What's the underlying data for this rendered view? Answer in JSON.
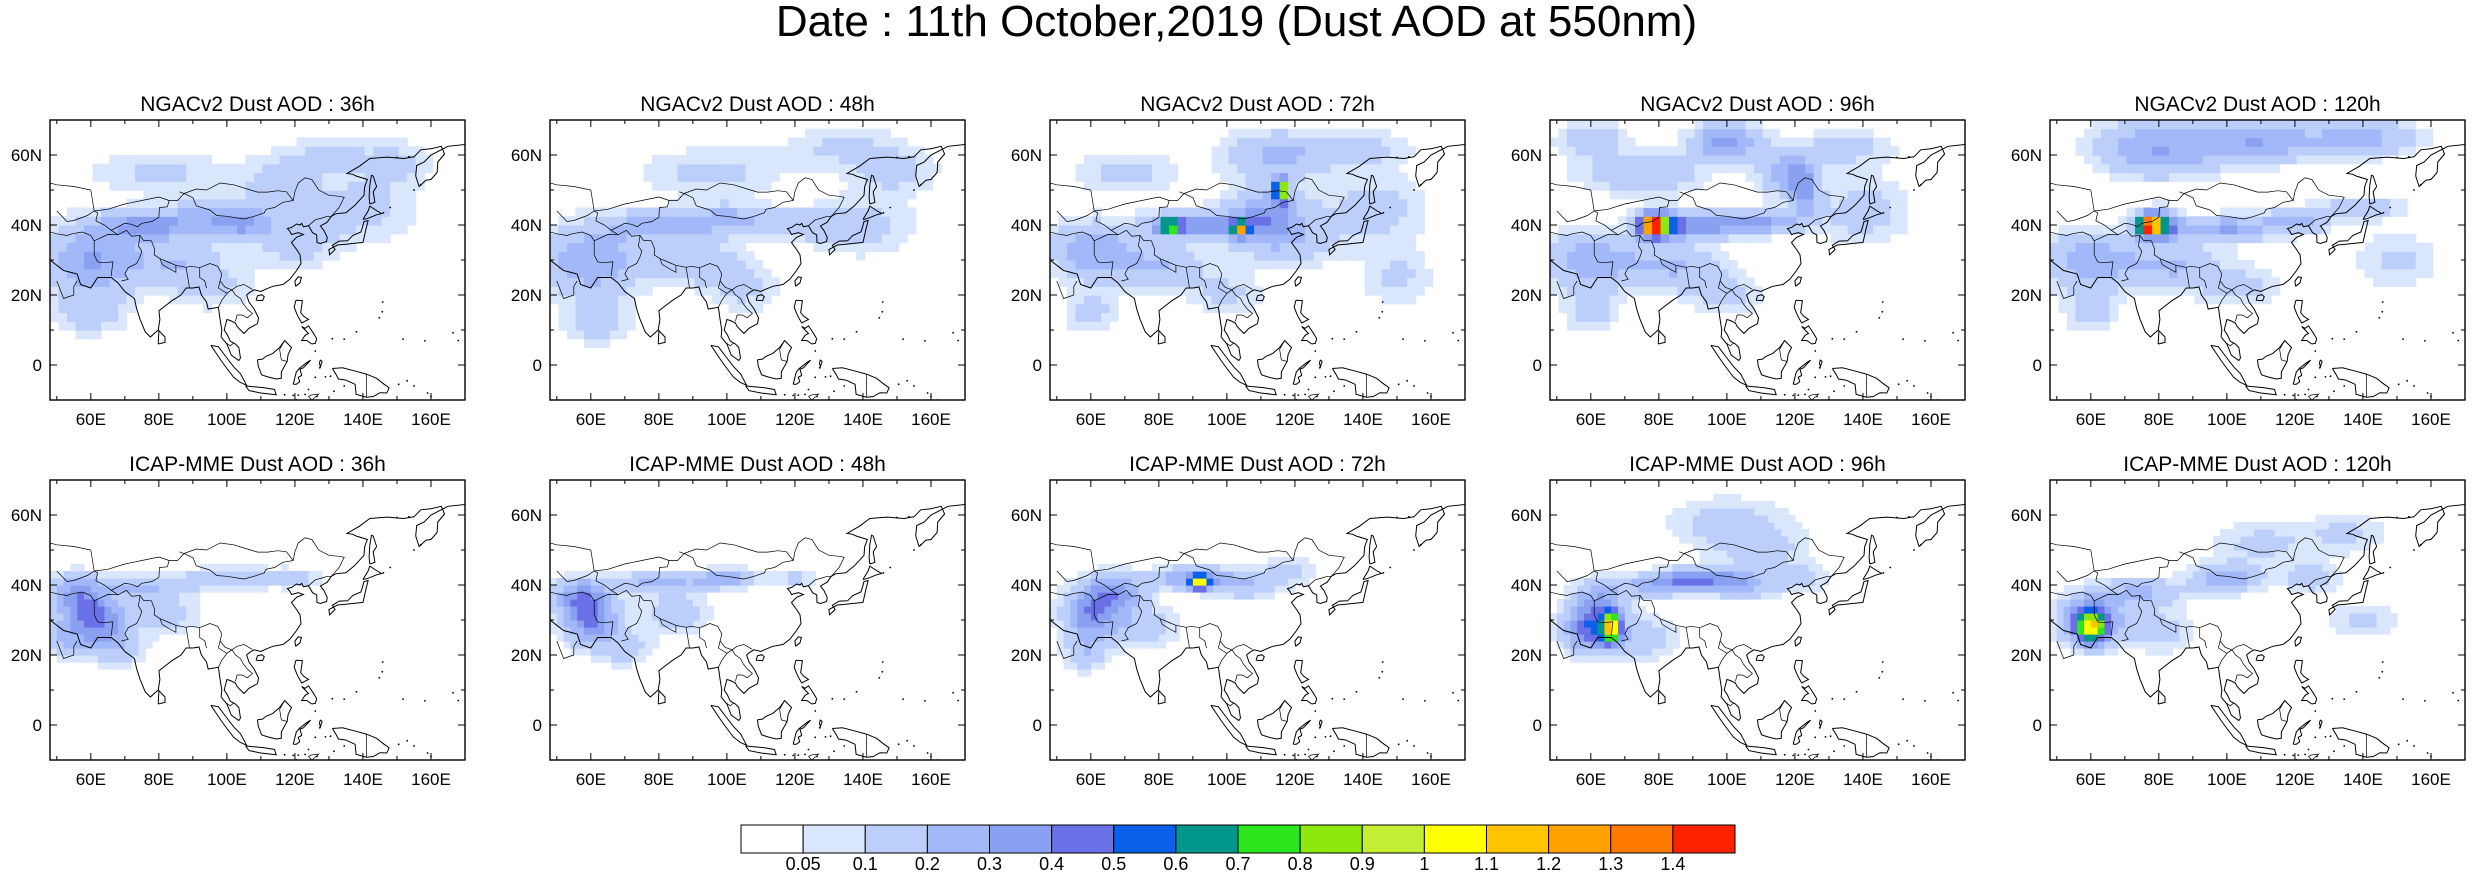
{
  "title": "Date : 11th October,2019 (Dust AOD at 550nm)",
  "panels": [
    {
      "title": "NGACv2 Dust AOD : 36h",
      "model": "NGAC",
      "lead": 36
    },
    {
      "title": "NGACv2 Dust AOD : 48h",
      "model": "NGAC",
      "lead": 48
    },
    {
      "title": "NGACv2 Dust AOD : 72h",
      "model": "NGAC",
      "lead": 72
    },
    {
      "title": "NGACv2 Dust AOD : 96h",
      "model": "NGAC",
      "lead": 96
    },
    {
      "title": "NGACv2 Dust AOD : 120h",
      "model": "NGAC",
      "lead": 120
    },
    {
      "title": "ICAP-MME Dust AOD : 36h",
      "model": "ICAP",
      "lead": 36
    },
    {
      "title": "ICAP-MME Dust AOD : 48h",
      "model": "ICAP",
      "lead": 48
    },
    {
      "title": "ICAP-MME Dust AOD : 72h",
      "model": "ICAP",
      "lead": 72
    },
    {
      "title": "ICAP-MME Dust AOD : 96h",
      "model": "ICAP",
      "lead": 96
    },
    {
      "title": "ICAP-MME Dust AOD : 120h",
      "model": "ICAP",
      "lead": 120
    }
  ],
  "map_extent": {
    "lon": [
      48,
      170
    ],
    "lat": [
      -10,
      70
    ]
  },
  "lon_ticks": [
    "60E",
    "80E",
    "100E",
    "120E",
    "140E",
    "160E"
  ],
  "lat_ticks": [
    "60N",
    "40N",
    "20N",
    "0"
  ],
  "colorbar": {
    "labels": [
      "0.05",
      "0.1",
      "0.2",
      "0.3",
      "0.4",
      "0.5",
      "0.6",
      "0.7",
      "0.8",
      "0.9",
      "1",
      "1.1",
      "1.2",
      "1.3",
      "1.4"
    ],
    "colors": [
      "#ffffff",
      "#d9e6fc",
      "#bccffa",
      "#a2b8f8",
      "#8aa1f2",
      "#6a70e6",
      "#0a60e8",
      "#03968d",
      "#2de61e",
      "#8fe80c",
      "#c4ee34",
      "#ffff00",
      "#ffc400",
      "#ffa200",
      "#ff7a00",
      "#ff2200"
    ]
  }
}
